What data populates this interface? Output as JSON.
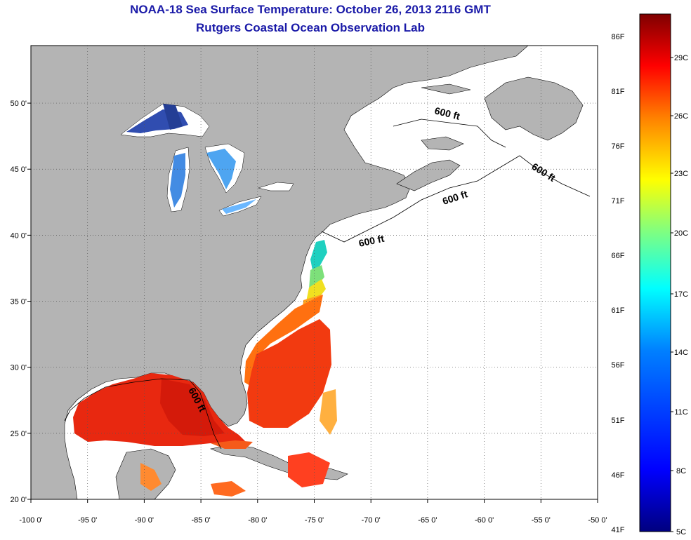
{
  "header": {
    "title": "NOAA-18 Sea Surface Temperature:  October 26, 2013 2116 GMT",
    "subtitle": "Rutgers Coastal Ocean Observation Lab"
  },
  "map": {
    "lon_ticks": [
      "-100 0'",
      "-95 0'",
      "-90 0'",
      "-85 0'",
      "-80 0'",
      "-75 0'",
      "-70 0'",
      "-65 0'",
      "-60 0'",
      "-55 0'",
      "-50 0'"
    ],
    "lat_ticks": [
      "20 0'",
      "25 0'",
      "30 0'",
      "35 0'",
      "40 0'",
      "45 0'",
      "50 0'"
    ],
    "contour_label": "600 ft",
    "colors": {
      "land": "#b4b4b4",
      "ocean": "#ffffff",
      "grid": "#555555"
    }
  },
  "colorbar": {
    "fahrenheit_labels": [
      "86F",
      "81F",
      "76F",
      "71F",
      "66F",
      "61F",
      "56F",
      "51F",
      "46F",
      "41F"
    ],
    "celsius_labels": [
      "29C",
      "26C",
      "23C",
      "20C",
      "17C",
      "14C",
      "11C",
      "8C",
      "5C"
    ],
    "colors": [
      "#00007f",
      "#0000ff",
      "#0080ff",
      "#00ffff",
      "#80ff80",
      "#ffff00",
      "#ff8000",
      "#ff0000",
      "#7f0000"
    ]
  }
}
